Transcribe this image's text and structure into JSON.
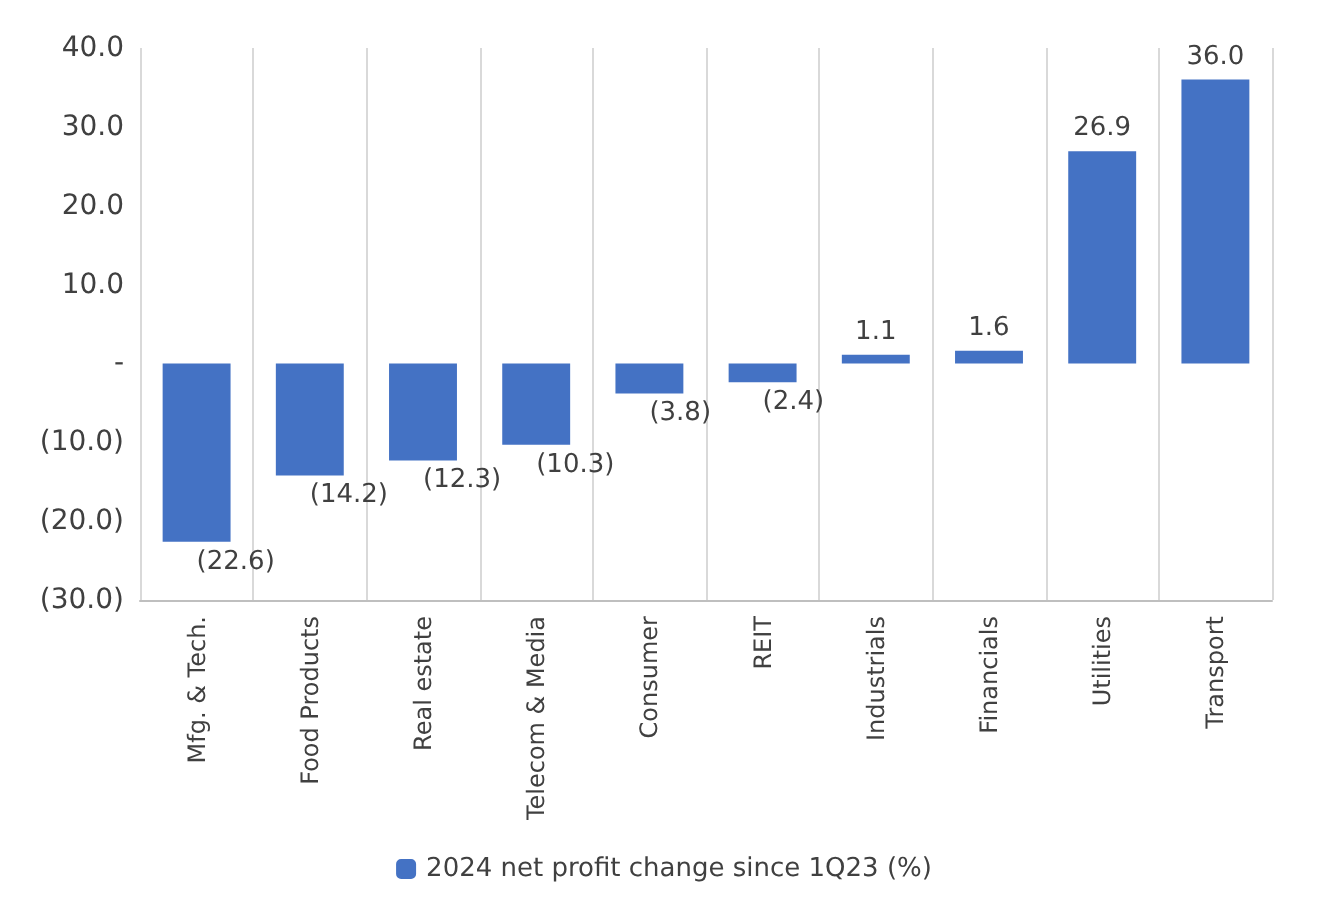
{
  "chart_data": {
    "type": "bar",
    "categories": [
      "Mfg. & Tech.",
      "Food Products",
      "Real estate",
      "Telecom & Media",
      "Consumer",
      "REIT",
      "Industrials",
      "Financials",
      "Utilities",
      "Transport"
    ],
    "series": [
      {
        "name": "2024 net profit change since 1Q23 (%)",
        "color": "#4472c4",
        "values": [
          -22.6,
          -14.2,
          -12.3,
          -10.3,
          -3.8,
          -2.4,
          1.1,
          1.6,
          26.9,
          36.0
        ],
        "value_labels": [
          "(22.6)",
          "(14.2)",
          "(12.3)",
          "(10.3)",
          "(3.8)",
          "(2.4)",
          "1.1",
          "1.6",
          "26.9",
          "36.0"
        ]
      }
    ],
    "ylim": [
      -30,
      40
    ],
    "yticks": [
      {
        "value": -30,
        "label": "(30.0)"
      },
      {
        "value": -20,
        "label": "(20.0)"
      },
      {
        "value": -10,
        "label": "(10.0)"
      },
      {
        "value": 0,
        "label": "-"
      },
      {
        "value": 10,
        "label": "10.0"
      },
      {
        "value": 20,
        "label": "20.0"
      },
      {
        "value": 30,
        "label": "30.0"
      },
      {
        "value": 40,
        "label": "40.0"
      }
    ],
    "grid": "x",
    "legend": "bottom"
  }
}
